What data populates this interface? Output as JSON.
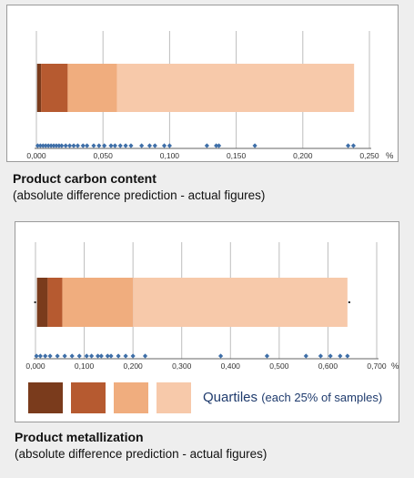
{
  "chart_data": [
    {
      "type": "boxplot",
      "title": "Product carbon content",
      "subtitle": "(absolute difference prediction - actual figures)",
      "unit": "%",
      "xlim": [
        0,
        0.25
      ],
      "ticks": [
        "0,000",
        "0,050",
        "0,100",
        "0,150",
        "0,200",
        "0,250"
      ],
      "tick_values": [
        0,
        0.05,
        0.1,
        0.15,
        0.2,
        0.25
      ],
      "quartile_bounds": [
        0.0005,
        0.0035,
        0.0235,
        0.0605,
        0.2385
      ],
      "points": [
        0.001,
        0.003,
        0.005,
        0.007,
        0.009,
        0.011,
        0.013,
        0.015,
        0.017,
        0.019,
        0.022,
        0.025,
        0.028,
        0.031,
        0.035,
        0.038,
        0.043,
        0.047,
        0.051,
        0.056,
        0.059,
        0.063,
        0.067,
        0.071,
        0.079,
        0.085,
        0.089,
        0.096,
        0.1,
        0.128,
        0.135,
        0.137,
        0.164,
        0.234,
        0.238
      ]
    },
    {
      "type": "boxplot",
      "title": "Product metallization",
      "subtitle": "(absolute difference prediction - actual figures)",
      "unit": "%",
      "xlim": [
        0,
        0.7
      ],
      "ticks": [
        "0,000",
        "0,100",
        "0,200",
        "0,300",
        "0,400",
        "0,500",
        "0,600",
        "0,700"
      ],
      "tick_values": [
        0,
        0.1,
        0.2,
        0.3,
        0.4,
        0.5,
        0.6,
        0.7
      ],
      "quartile_bounds": [
        0.003,
        0.025,
        0.055,
        0.2,
        0.64
      ],
      "points": [
        0.002,
        0.01,
        0.02,
        0.03,
        0.045,
        0.06,
        0.075,
        0.09,
        0.105,
        0.115,
        0.128,
        0.135,
        0.148,
        0.155,
        0.17,
        0.185,
        0.2,
        0.225,
        0.38,
        0.475,
        0.555,
        0.585,
        0.605,
        0.625,
        0.64
      ]
    }
  ],
  "colors": {
    "q1": "#7a3b1c",
    "q2": "#b65a30",
    "q3": "#f0ad7e",
    "q4": "#f7c9aa",
    "points": "#3d6ea8",
    "grid": "#bdbdbd",
    "legend_text": "#1f3b6d"
  },
  "legend": {
    "label": "Quartiles",
    "detail": "(each 25% of samples)"
  }
}
